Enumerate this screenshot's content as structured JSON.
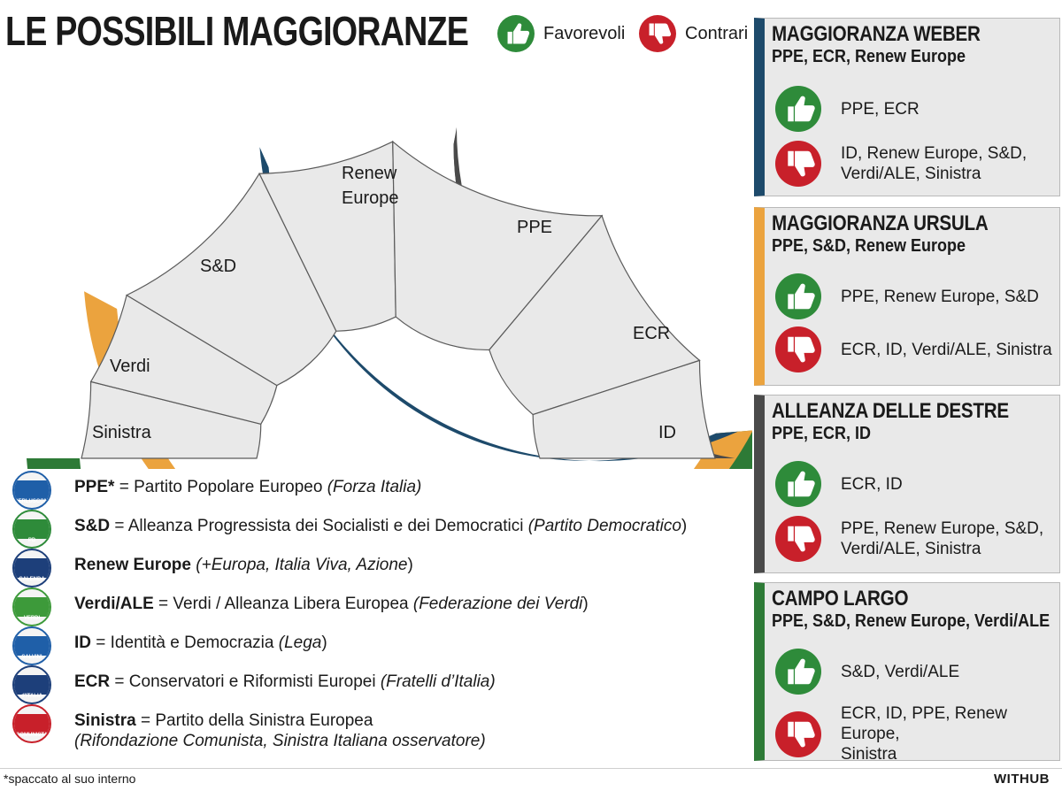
{
  "title": "LE POSSIBILI MAGGIORANZE",
  "legend": {
    "favorevoli": "Favorevoli",
    "contrari": "Contrari"
  },
  "arc_labels": {
    "sinistra": "Sinistra",
    "verdi": "Verdi",
    "sd": "S&D",
    "renew_1": "Renew",
    "renew_2": "Europe",
    "ppe": "PPE",
    "ecr": "ECR",
    "id": "ID"
  },
  "colors": {
    "weber": "#1d4a6b",
    "ursula": "#eba33e",
    "destre": "#4a4a4a",
    "campo_largo": "#2d7a36",
    "segment_fill": "#e9e9e9",
    "favorevoli": "#2e8b3a",
    "contrari": "#c8202a"
  },
  "parties": [
    {
      "abbr": "PPE*",
      "desc": " = Partito Popolare Europeo ",
      "italic": "(Forza Italia)",
      "tail": "",
      "logo_color": "#1f5fa8",
      "logo_tag": "BERLUSCONI"
    },
    {
      "abbr": "S&D",
      "desc": " = Alleanza Progressista dei Socialisti e dei Democratici ",
      "italic": "(Partito Democratico",
      "tail": ")",
      "logo_color": "#2e8b3a",
      "logo_tag": "PD"
    },
    {
      "abbr": "Renew Europe",
      "desc": " ",
      "italic": "(+Europa, Italia Viva, Azione",
      "tail": ")",
      "logo_color": "#1d3f7a",
      "logo_tag": "CALENDA"
    },
    {
      "abbr": "Verdi/ALE",
      "desc": " = Verdi / Alleanza Libera Europea ",
      "italic": "(Federazione dei Verdi",
      "tail": ")",
      "logo_color": "#3d9a3a",
      "logo_tag": "VERDI"
    },
    {
      "abbr": "ID",
      "desc": " = Identità e Democrazia ",
      "italic": "(Lega",
      "tail": ")",
      "logo_color": "#1f5fa8",
      "logo_tag": "SALVINI"
    },
    {
      "abbr": "ECR",
      "desc": " = Conservatori e Riformisti Europei ",
      "italic": "(Fratelli d’Italia)",
      "tail": "",
      "logo_color": "#1d3f7a",
      "logo_tag": "d'ITALIA"
    },
    {
      "abbr": "Sinistra",
      "desc": " = Partito della Sinistra Europea",
      "italic": "",
      "tail": "",
      "line2": "(Rifondazione Comunista, Sinistra Italiana osservatore)",
      "logo_color": "#c8202a",
      "logo_tag": "COMUNISTA"
    }
  ],
  "footnote": "*spaccato al suo interno",
  "brand": "WITHUB",
  "boxes": [
    {
      "title": "MAGGIORANZA WEBER",
      "sub": "PPE, ECR, Renew Europe",
      "favor": [
        "PPE, ECR"
      ],
      "contra": [
        "ID, Renew Europe, S&D,",
        "Verdi/ALE, Sinistra"
      ],
      "color": "#1d4a6b"
    },
    {
      "title": "MAGGIORANZA URSULA",
      "sub": "PPE, S&D, Renew Europe",
      "favor": [
        "PPE, Renew Europe, S&D"
      ],
      "contra": [
        "ECR, ID, Verdi/ALE, Sinistra"
      ],
      "color": "#eba33e"
    },
    {
      "title": "ALLEANZA DELLE DESTRE",
      "sub": "PPE, ECR, ID",
      "favor": [
        "ECR, ID"
      ],
      "contra": [
        "PPE, Renew Europe, S&D,",
        "Verdi/ALE, Sinistra"
      ],
      "color": "#4a4a4a"
    },
    {
      "title": "CAMPO LARGO",
      "sub": "PPE, S&D, Renew Europe, Verdi/ALE",
      "favor": [
        "S&D, Verdi/ALE"
      ],
      "contra": [
        "ECR, ID, PPE, Renew Europe,",
        "Sinistra"
      ],
      "color": "#2d7a36"
    }
  ]
}
